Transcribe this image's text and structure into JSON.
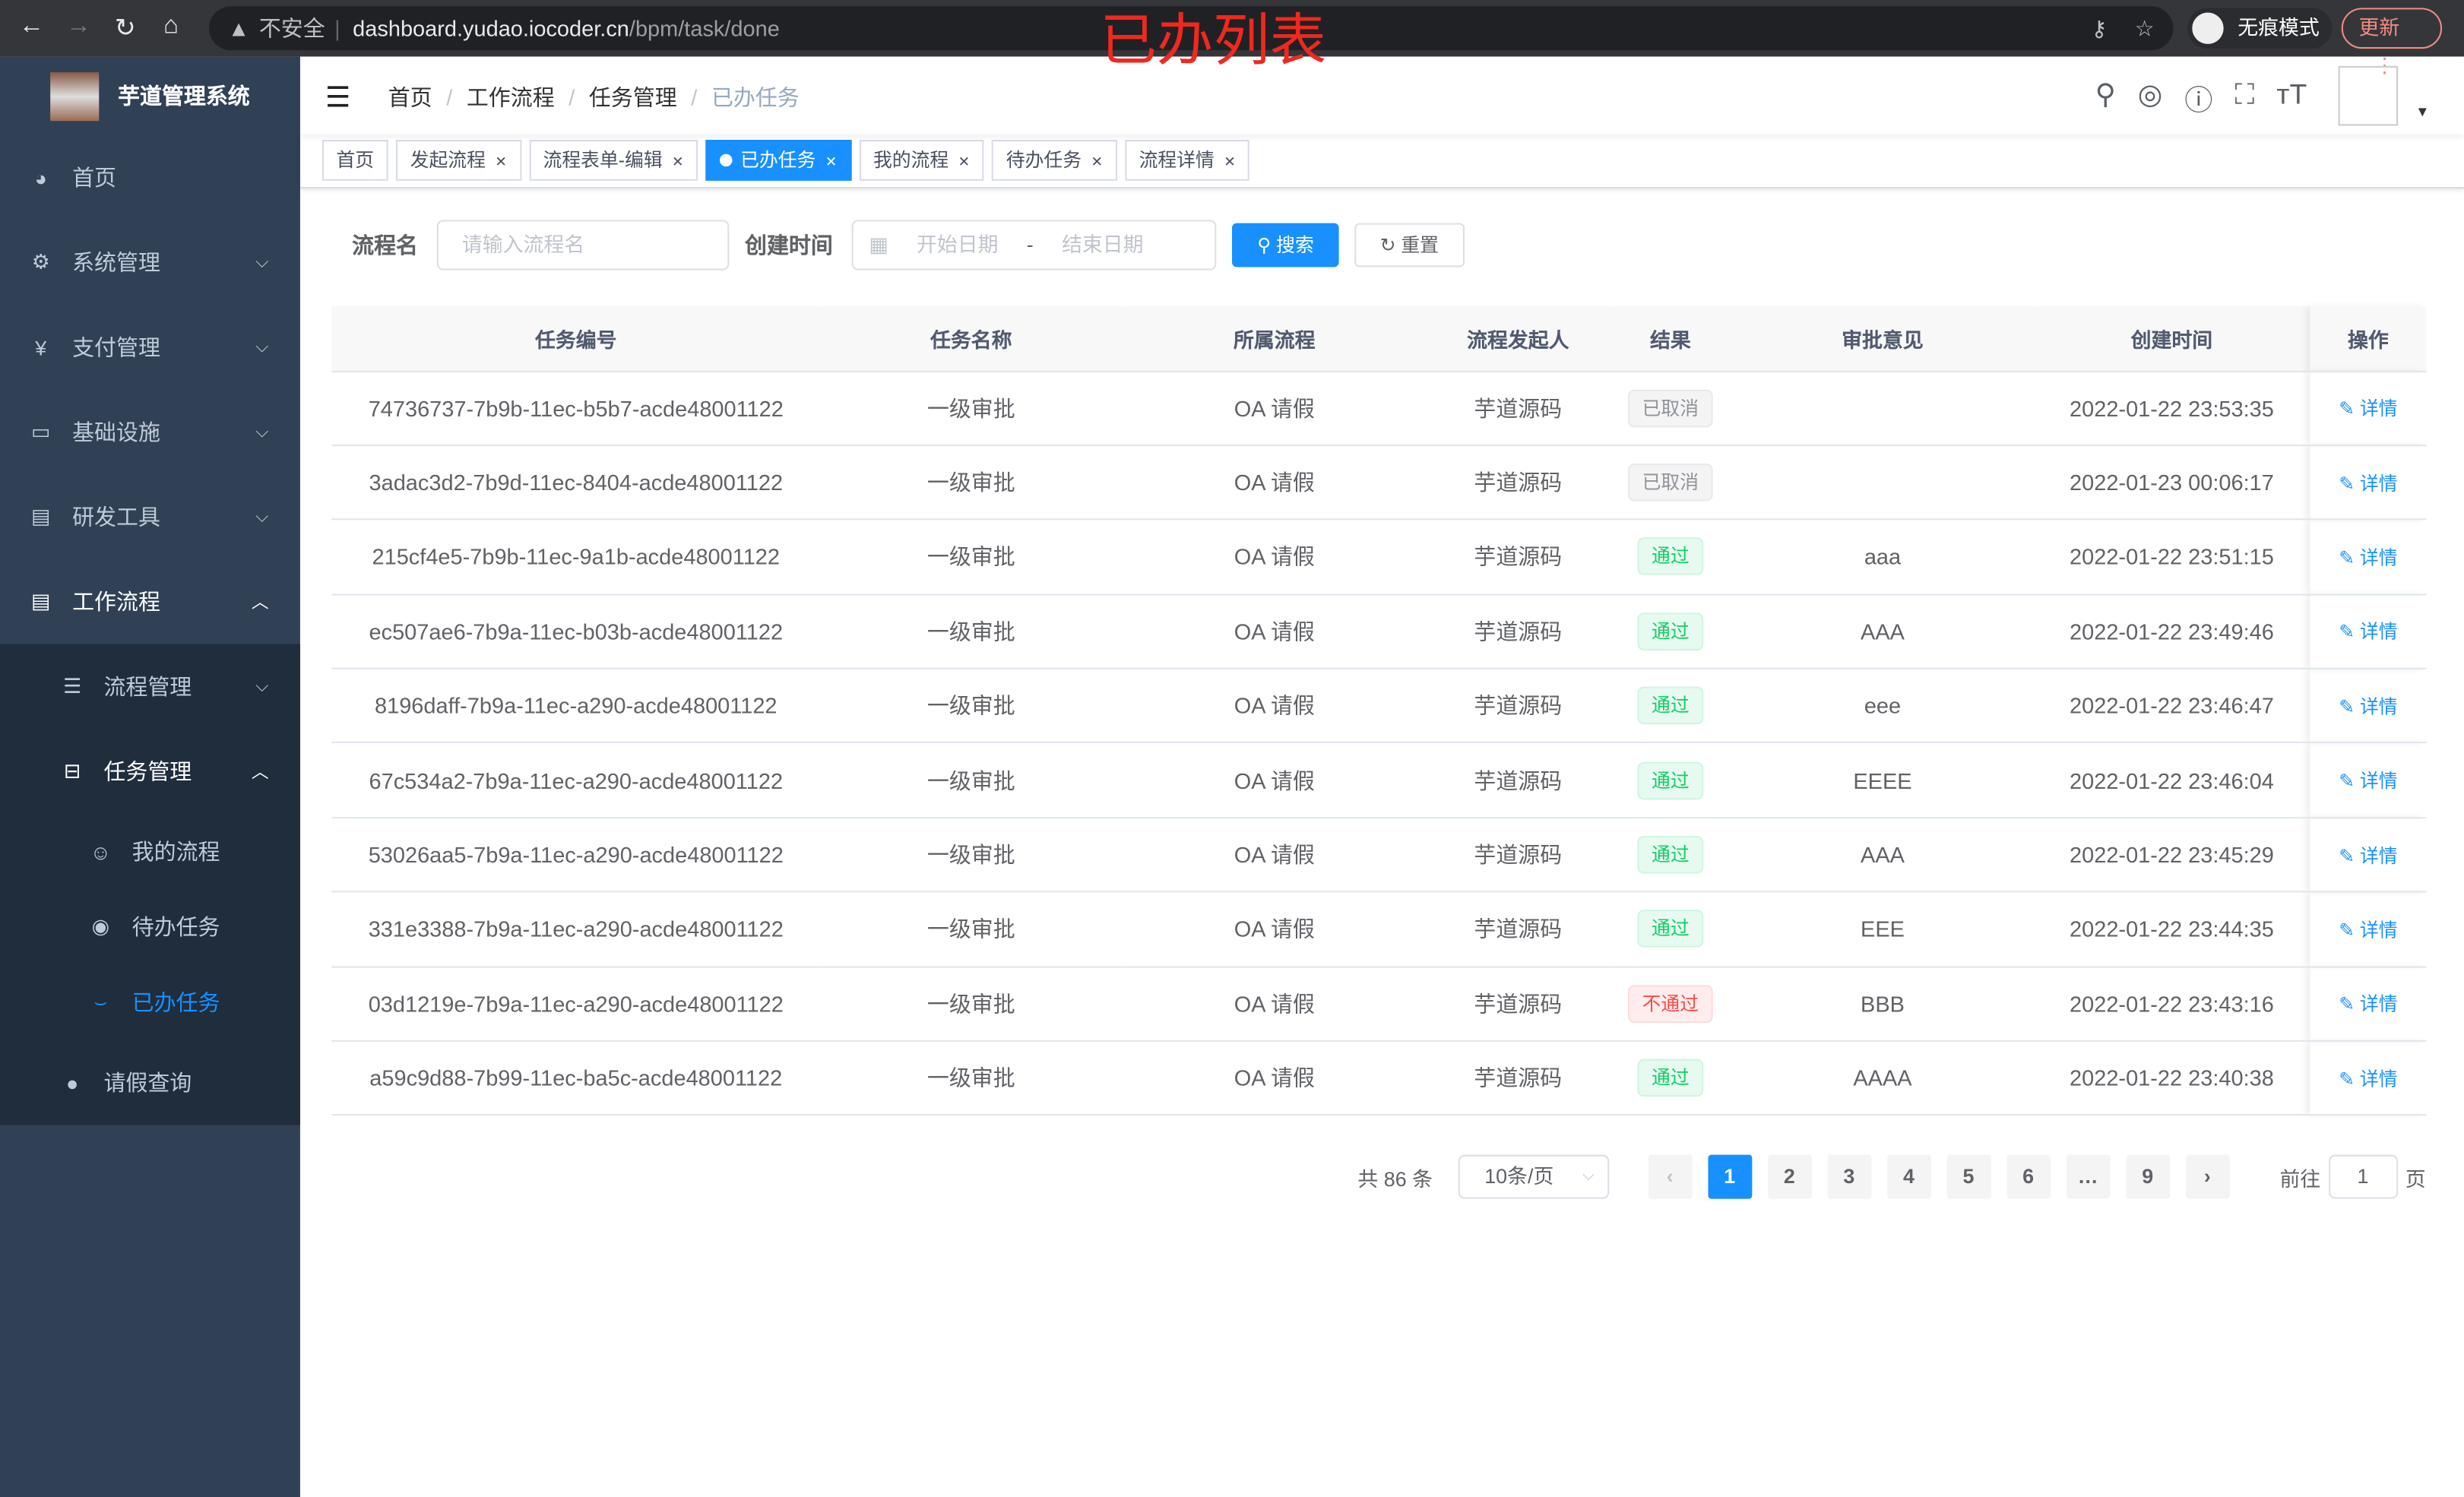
{
  "browser": {
    "security": "不安全",
    "url_host": "dashboard.yudao.iocoder.cn",
    "url_path": "/bpm/task/done",
    "incognito": "无痕模式",
    "update": "更新"
  },
  "annotation": "已办列表",
  "sidebar": {
    "title": "芋道管理系统",
    "items": [
      {
        "label": "首页",
        "icon": "dashboard-icon"
      },
      {
        "label": "系统管理",
        "icon": "gear-icon"
      },
      {
        "label": "支付管理",
        "icon": "yen-icon"
      },
      {
        "label": "基础设施",
        "icon": "monitor-icon"
      },
      {
        "label": "研发工具",
        "icon": "toolbox-icon"
      },
      {
        "label": "工作流程",
        "icon": "toolbox-icon"
      }
    ],
    "sub": [
      {
        "label": "流程管理"
      },
      {
        "label": "任务管理"
      }
    ],
    "task_items": [
      {
        "label": "我的流程"
      },
      {
        "label": "待办任务"
      },
      {
        "label": "已办任务"
      }
    ],
    "leave": "请假查询"
  },
  "breadcrumb": [
    "首页",
    "工作流程",
    "任务管理",
    "已办任务"
  ],
  "tags": [
    "首页",
    "发起流程",
    "流程表单-编辑",
    "已办任务",
    "我的流程",
    "待办任务",
    "流程详情"
  ],
  "filter": {
    "name_label": "流程名",
    "name_placeholder": "请输入流程名",
    "time_label": "创建时间",
    "start_placeholder": "开始日期",
    "sep": "-",
    "end_placeholder": "结束日期",
    "search": "搜索",
    "reset": "重置"
  },
  "table": {
    "headers": [
      "任务编号",
      "任务名称",
      "所属流程",
      "流程发起人",
      "结果",
      "审批意见",
      "创建时间",
      "操作"
    ],
    "rows": [
      [
        "74736737-7b9b-11ec-b5b7-acde48001122",
        "一级审批",
        "OA 请假",
        "芋道源码",
        "已取消",
        "",
        "2022-01-22 23:53:35",
        "详情"
      ],
      [
        "3adac3d2-7b9d-11ec-8404-acde48001122",
        "一级审批",
        "OA 请假",
        "芋道源码",
        "已取消",
        "",
        "2022-01-23 00:06:17",
        "详情"
      ],
      [
        "215cf4e5-7b9b-11ec-9a1b-acde48001122",
        "一级审批",
        "OA 请假",
        "芋道源码",
        "通过",
        "aaa",
        "2022-01-22 23:51:15",
        "详情"
      ],
      [
        "ec507ae6-7b9a-11ec-b03b-acde48001122",
        "一级审批",
        "OA 请假",
        "芋道源码",
        "通过",
        "AAA",
        "2022-01-22 23:49:46",
        "详情"
      ],
      [
        "8196daff-7b9a-11ec-a290-acde48001122",
        "一级审批",
        "OA 请假",
        "芋道源码",
        "通过",
        "eee",
        "2022-01-22 23:46:47",
        "详情"
      ],
      [
        "67c534a2-7b9a-11ec-a290-acde48001122",
        "一级审批",
        "OA 请假",
        "芋道源码",
        "通过",
        "EEEE",
        "2022-01-22 23:46:04",
        "详情"
      ],
      [
        "53026aa5-7b9a-11ec-a290-acde48001122",
        "一级审批",
        "OA 请假",
        "芋道源码",
        "通过",
        "AAA",
        "2022-01-22 23:45:29",
        "详情"
      ],
      [
        "331e3388-7b9a-11ec-a290-acde48001122",
        "一级审批",
        "OA 请假",
        "芋道源码",
        "通过",
        "EEE",
        "2022-01-22 23:44:35",
        "详情"
      ],
      [
        "03d1219e-7b9a-11ec-a290-acde48001122",
        "一级审批",
        "OA 请假",
        "芋道源码",
        "不通过",
        "BBB",
        "2022-01-22 23:43:16",
        "详情"
      ],
      [
        "a59c9d88-7b99-11ec-ba5c-acde48001122",
        "一级审批",
        "OA 请假",
        "芋道源码",
        "通过",
        "AAAA",
        "2022-01-22 23:40:38",
        "详情"
      ]
    ]
  },
  "result_colors": {
    "已取消": "#909399",
    "通过": "#13ce66",
    "不通过": "#ff4949"
  },
  "pagination": {
    "total": "共 86 条",
    "page_size": "10条/页",
    "pages": [
      "1",
      "2",
      "3",
      "4",
      "5",
      "6",
      "…",
      "9"
    ],
    "current": "1",
    "goto_label": "前往",
    "goto_value": "1",
    "page_unit": "页"
  }
}
